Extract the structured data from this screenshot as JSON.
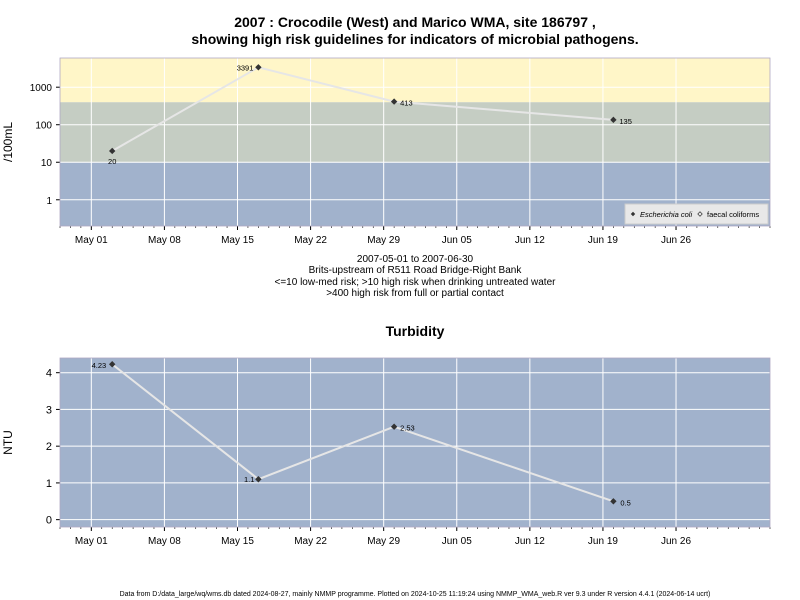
{
  "figure": {
    "title_line1": "2007 : Crocodile (West) and Marico WMA, site 186797 ,",
    "title_line2": "showing high risk guidelines for indicators of microbial pathogens.",
    "subtitle_lines": [
      "2007-05-01 to 2007-06-30",
      "Brits-upstream of R511 Road Bridge-Right Bank",
      "<=10 low-med risk; >10 high risk when drinking untreated water",
      ">400 high risk from full or partial contact"
    ],
    "footer": "Data from D:/data_large/wq/wms.db dated 2024-08-27, mainly NMMP programme. Plotted on 2024-10-25 11:19:24 using NMMP_WMA_web.R ver 9.3 under R version 4.4.1 (2024-06-14 ucrt)"
  },
  "colors": {
    "panel_low": "#a1b2cc",
    "panel_mid": "#c5cdc3",
    "panel_high": "#fff6c8",
    "grid": "#ffffff",
    "line": "#e6e6e6",
    "point": "#333333"
  },
  "chart_data": [
    {
      "type": "line",
      "ylabel": "/100mL",
      "y_scale": "log",
      "ylim": [
        0.2,
        6000
      ],
      "y_ticks": [
        1,
        10,
        100,
        1000
      ],
      "y_tick_labels": [
        "1",
        "10",
        "100",
        "1000"
      ],
      "x_range": [
        "2007-04-28",
        "2007-07-05"
      ],
      "x_ticks": [
        "2007-05-01",
        "2007-05-08",
        "2007-05-15",
        "2007-05-22",
        "2007-05-29",
        "2007-06-05",
        "2007-06-12",
        "2007-06-19",
        "2007-06-26"
      ],
      "x_tick_labels": [
        "May 01",
        "May 08",
        "May 15",
        "May 22",
        "May 29",
        "Jun 05",
        "Jun 12",
        "Jun 19",
        "Jun 26"
      ],
      "bands": [
        {
          "from": 0.2,
          "to": 10,
          "color_key": "panel_low"
        },
        {
          "from": 10,
          "to": 400,
          "color_key": "panel_mid"
        },
        {
          "from": 400,
          "to": 6000,
          "color_key": "panel_high"
        }
      ],
      "legend_position": "bottom-right",
      "series": [
        {
          "name": "Escherichia coli",
          "x": [
            "2007-05-03",
            "2007-05-17",
            "2007-05-30",
            "2007-06-20"
          ],
          "values": [
            20,
            3391,
            413,
            135
          ],
          "labels": [
            "20",
            "3391",
            "413",
            "135"
          ]
        },
        {
          "name": "faecal coliforms",
          "x": [],
          "values": [],
          "labels": []
        }
      ]
    },
    {
      "type": "line",
      "title": "Turbidity",
      "ylabel": "NTU",
      "y_scale": "linear",
      "ylim": [
        -0.2,
        4.4
      ],
      "y_ticks": [
        0,
        1,
        2,
        3,
        4
      ],
      "y_tick_labels": [
        "0",
        "1",
        "2",
        "3",
        "4"
      ],
      "x_range": [
        "2007-04-28",
        "2007-07-05"
      ],
      "x_ticks": [
        "2007-05-01",
        "2007-05-08",
        "2007-05-15",
        "2007-05-22",
        "2007-05-29",
        "2007-06-05",
        "2007-06-12",
        "2007-06-19",
        "2007-06-26"
      ],
      "x_tick_labels": [
        "May 01",
        "May 08",
        "May 15",
        "May 22",
        "May 29",
        "Jun 05",
        "Jun 12",
        "Jun 19",
        "Jun 26"
      ],
      "series": [
        {
          "x": [
            "2007-05-03",
            "2007-05-17",
            "2007-05-30",
            "2007-06-20"
          ],
          "values": [
            4.23,
            1.1,
            2.53,
            0.5
          ],
          "labels": [
            "4.23",
            "1.1",
            "2.53",
            "0.5"
          ]
        }
      ]
    }
  ]
}
